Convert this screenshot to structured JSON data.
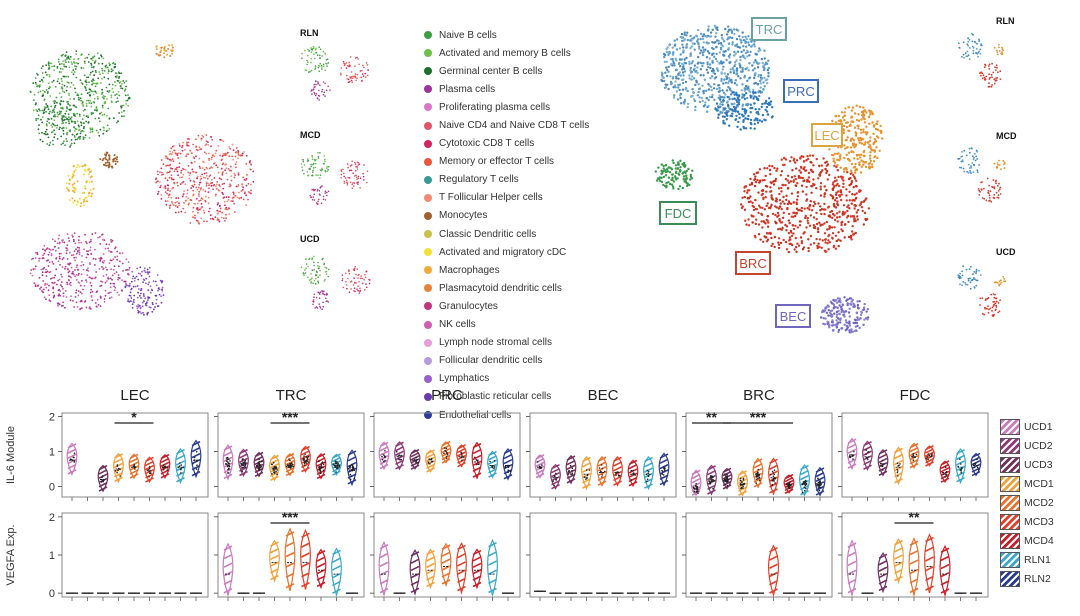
{
  "umap_panels": {
    "small_labels": [
      "RLN",
      "MCD",
      "UCD"
    ],
    "right_small_labels": [
      "RLN",
      "MCD",
      "UCD"
    ],
    "cluster_labels": [
      "TRC",
      "PRC",
      "LEC",
      "FDC",
      "BRC",
      "BEC"
    ]
  },
  "cell_legend": [
    {
      "label": "Naive B cells",
      "color": "#3f9e45"
    },
    {
      "label": "Activated and memory B cells",
      "color": "#6cc04a"
    },
    {
      "label": "Germinal center B cells",
      "color": "#1f6e2e"
    },
    {
      "label": "Plasma cells",
      "color": "#a0329b"
    },
    {
      "label": "Proliferating plasma cells",
      "color": "#d877c6"
    },
    {
      "label": "Naive CD4 and Naive CD8 T cells",
      "color": "#e0556a"
    },
    {
      "label": "Cytotoxic CD8 T cells",
      "color": "#d3245e"
    },
    {
      "label": "Memory or effector T cells",
      "color": "#e8573c"
    },
    {
      "label": "Regulatory T cells",
      "color": "#3a9a9a"
    },
    {
      "label": "T Follicular Helper cells",
      "color": "#f08a72"
    },
    {
      "label": "Monocytes",
      "color": "#a0622d"
    },
    {
      "label": "Classic Dendritic cells",
      "color": "#c9c14a"
    },
    {
      "label": "Activated and migratory cDC",
      "color": "#f2df3c"
    },
    {
      "label": "Macrophages",
      "color": "#f2a93c"
    },
    {
      "label": "Plasmacytoid dendritic cells",
      "color": "#e6823a"
    },
    {
      "label": "Granulocytes",
      "color": "#c2357f"
    },
    {
      "label": "NK cells",
      "color": "#d05fae"
    },
    {
      "label": "Lymph node stromal  cells",
      "color": "#e4a0d8"
    },
    {
      "label": "Follicular dendritic cells",
      "color": "#b59bd8"
    },
    {
      "label": "Lymphatics",
      "color": "#9a5fcf"
    },
    {
      "label": "Fibroblastic reticular cells",
      "color": "#6a3bb0"
    },
    {
      "label": "Endothelial cells",
      "color": "#2a3c9e"
    }
  ],
  "chart_data": {
    "type": "violin",
    "panel_titles": [
      "LEC",
      "TRC",
      "PRC",
      "BEC",
      "BRC",
      "FDC"
    ],
    "rows": [
      {
        "ylabel": "IL-6 Module",
        "yticks": [
          "2",
          "1",
          "0"
        ],
        "ylim": [
          -0.3,
          2.1
        ],
        "significance": [
          {
            "panel": "LEC",
            "label": "*",
            "from": "MCD1",
            "to": "MCD3"
          },
          {
            "panel": "TRC",
            "label": "***",
            "from": "MCD1",
            "to": "MCD3"
          },
          {
            "panel": "BRC",
            "label": "**",
            "from": "UCD1",
            "to": "UCD3"
          },
          {
            "panel": "BRC",
            "label": "***",
            "from": "UCD3",
            "to": "MCD4"
          }
        ]
      },
      {
        "ylabel": "VEGFA Exp.",
        "yticks": [
          "2",
          "1",
          "0"
        ],
        "ylim": [
          -0.1,
          2.1
        ],
        "significance": [
          {
            "panel": "TRC",
            "label": "***",
            "from": "MCD1",
            "to": "MCD3"
          },
          {
            "panel": "FDC",
            "label": "**",
            "from": "MCD1",
            "to": "MCD3"
          }
        ]
      }
    ],
    "groups": [
      "UCD1",
      "UCD2",
      "UCD3",
      "MCD1",
      "MCD2",
      "MCD3",
      "MCD4",
      "RLN1",
      "RLN2"
    ],
    "group_colors": [
      "#c87bbf",
      "#8e3a78",
      "#702f5e",
      "#f2a23c",
      "#e8722d",
      "#e0402a",
      "#c81e2a",
      "#3aa8c8",
      "#2a3c8e"
    ],
    "medians": {
      "IL-6 Module": {
        "LEC": [
          0.75,
          null,
          0.2,
          0.5,
          0.55,
          0.45,
          0.55,
          0.55,
          0.75
        ],
        "TRC": [
          0.65,
          0.65,
          0.6,
          0.5,
          0.6,
          0.75,
          0.55,
          0.6,
          0.5
        ],
        "PRC": [
          0.85,
          0.85,
          0.75,
          0.7,
          0.95,
          0.85,
          0.7,
          0.6,
          0.6
        ],
        "BEC": [
          0.55,
          0.25,
          0.45,
          0.35,
          0.4,
          0.4,
          0.35,
          0.35,
          0.45
        ],
        "BRC": [
          -0.05,
          0.15,
          0.2,
          0.05,
          0.35,
          0.25,
          0.05,
          0.05,
          0.05
        ],
        "FDC": [
          0.9,
          0.85,
          0.65,
          0.55,
          0.85,
          0.85,
          0.4,
          0.55,
          0.6
        ]
      },
      "VEGFA Exp.": {
        "LEC": [
          0,
          0,
          0,
          0,
          0,
          0,
          0,
          0,
          0
        ],
        "TRC": [
          0.5,
          0,
          0,
          0.8,
          0.8,
          0.8,
          0.6,
          0.5,
          0
        ],
        "PRC": [
          0.5,
          0,
          0.5,
          0.6,
          0.7,
          0.6,
          0.6,
          0.5,
          0
        ],
        "BEC": [
          0.05,
          0,
          0,
          0,
          0,
          0,
          0,
          0,
          0
        ],
        "BRC": [
          0,
          0,
          0,
          0,
          0,
          0.5,
          0,
          0,
          0
        ],
        "FDC": [
          0.5,
          0,
          0.5,
          0.8,
          0.6,
          0.7,
          0.5,
          0,
          0
        ]
      }
    }
  }
}
